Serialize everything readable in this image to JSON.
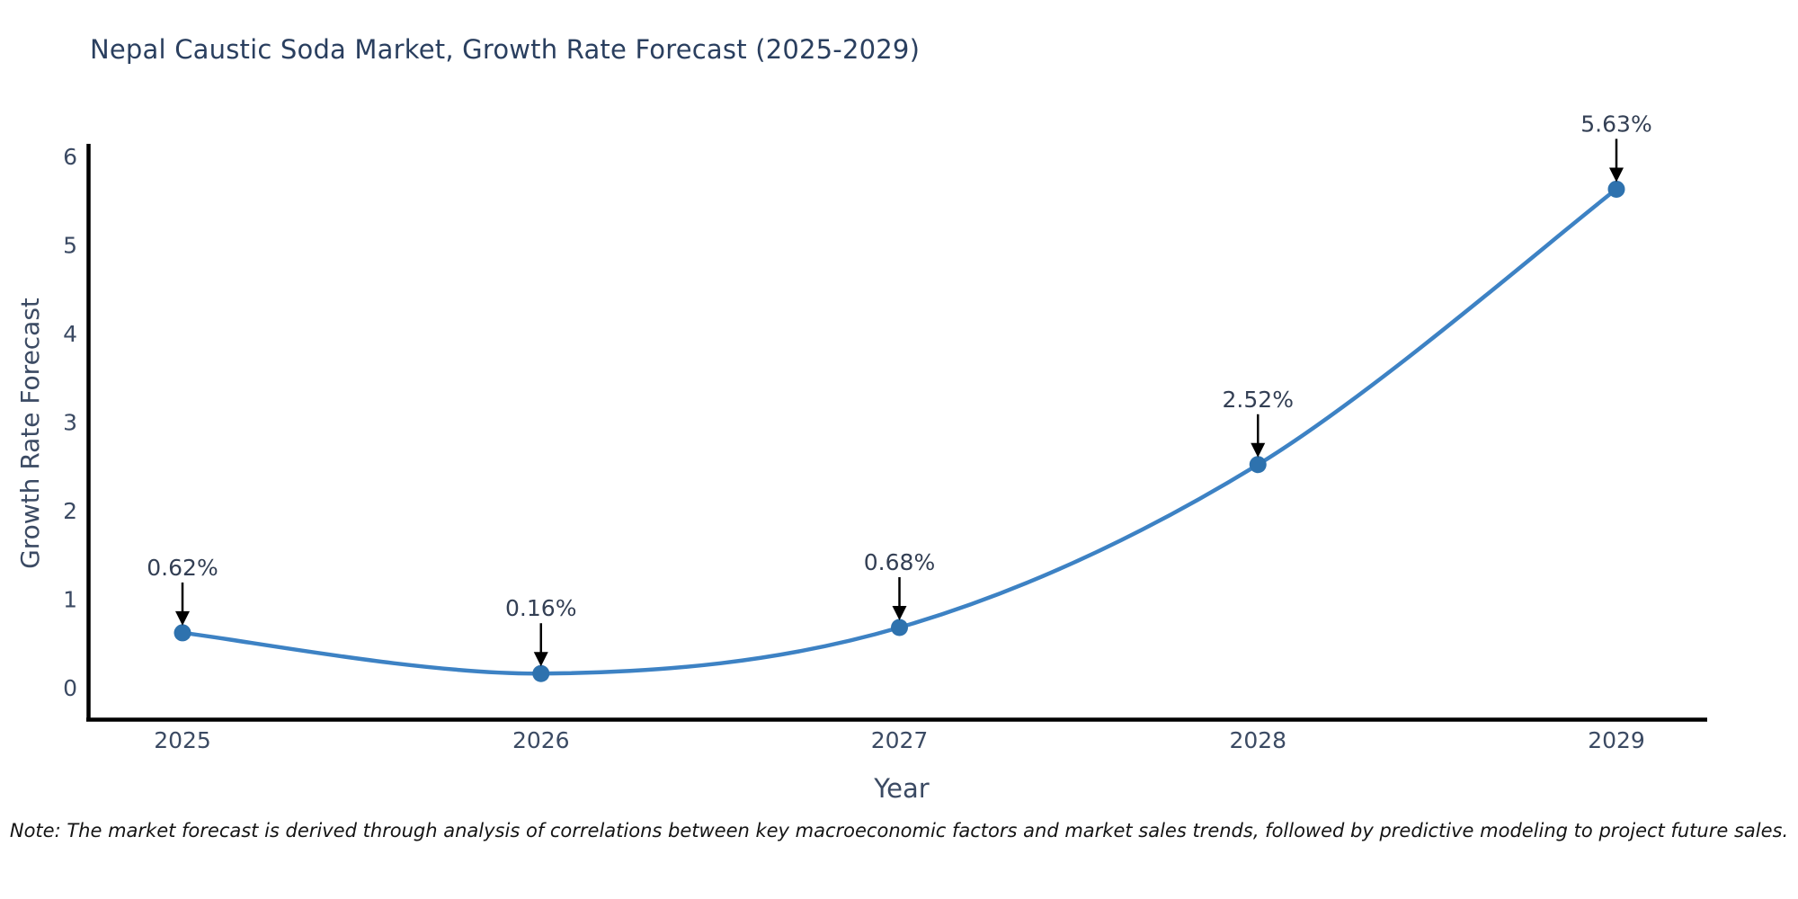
{
  "chart_data": {
    "type": "line",
    "title": "Nepal Caustic Soda Market, Growth Rate Forecast (2025-2029)",
    "xlabel": "Year",
    "ylabel": "Growth Rate Forecast",
    "x": [
      2025,
      2026,
      2027,
      2028,
      2029
    ],
    "series": [
      {
        "name": "Growth Rate Forecast",
        "values": [
          0.62,
          0.16,
          0.68,
          2.52,
          5.63
        ]
      }
    ],
    "point_labels": [
      "0.62%",
      "0.16%",
      "0.68%",
      "2.52%",
      "5.63%"
    ],
    "yticks": [
      0,
      1,
      2,
      3,
      4,
      5,
      6
    ],
    "ylim": [
      0,
      6
    ],
    "grid": false,
    "legend_position": "none",
    "note": "Note: The market forecast is derived through analysis of correlations between key macroeconomic factors and market sales trends, followed by predictive modeling to project future sales.",
    "colors": {
      "line": "#3d82c4",
      "marker": "#2e72ae",
      "axis": "#000000",
      "arrow": "#000000",
      "title_text": "#2a3f5f",
      "tick_text": "#3b4a63",
      "annotation_text": "#333f54",
      "note_text": "#141414",
      "background": "#ffffff"
    }
  }
}
